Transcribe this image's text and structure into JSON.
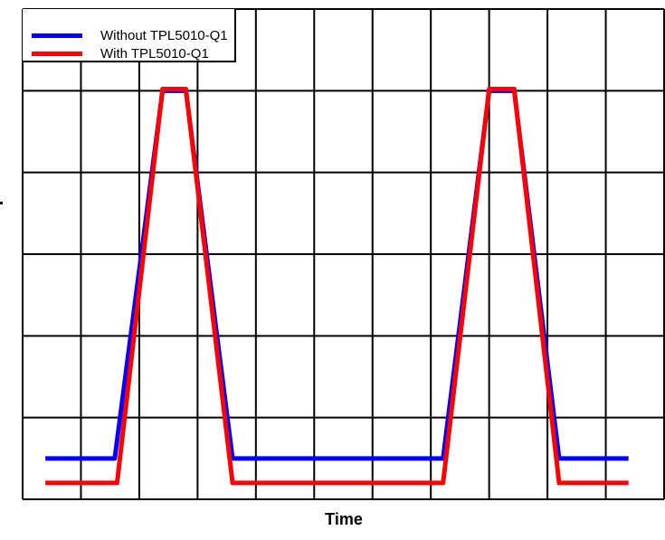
{
  "chart_data": {
    "type": "line",
    "title": "",
    "xlabel": "Time",
    "ylabel": "",
    "grid": true,
    "grid_divisions": {
      "x": 11,
      "y": 6
    },
    "legend_position": "upper-left",
    "x_range": [
      0,
      11
    ],
    "y_range": [
      0,
      6
    ],
    "series": [
      {
        "name": "Without TPL5010-Q1",
        "color": "#0000ff",
        "points": [
          [
            0.39,
            0.5
          ],
          [
            1.58,
            0.5
          ],
          [
            2.4,
            5.0
          ],
          [
            2.8,
            5.0
          ],
          [
            3.6,
            0.5
          ],
          [
            7.21,
            0.5
          ],
          [
            8.0,
            5.0
          ],
          [
            8.43,
            5.0
          ],
          [
            9.2,
            0.5
          ],
          [
            10.39,
            0.5
          ]
        ]
      },
      {
        "name": "With TPL5010-Q1",
        "color": "#ff0000",
        "points": [
          [
            0.39,
            0.2
          ],
          [
            1.62,
            0.2
          ],
          [
            2.4,
            5.02
          ],
          [
            2.8,
            5.02
          ],
          [
            3.6,
            0.2
          ],
          [
            7.21,
            0.2
          ],
          [
            8.0,
            5.02
          ],
          [
            8.43,
            5.02
          ],
          [
            9.2,
            0.2
          ],
          [
            10.39,
            0.2
          ]
        ]
      }
    ]
  },
  "legend": {
    "items": [
      {
        "label": "Without TPL5010-Q1",
        "color": "#0000ff"
      },
      {
        "label": "With TPL5010-Q1",
        "color": "#ff0000"
      }
    ]
  },
  "axis": {
    "x_label": "Time"
  }
}
